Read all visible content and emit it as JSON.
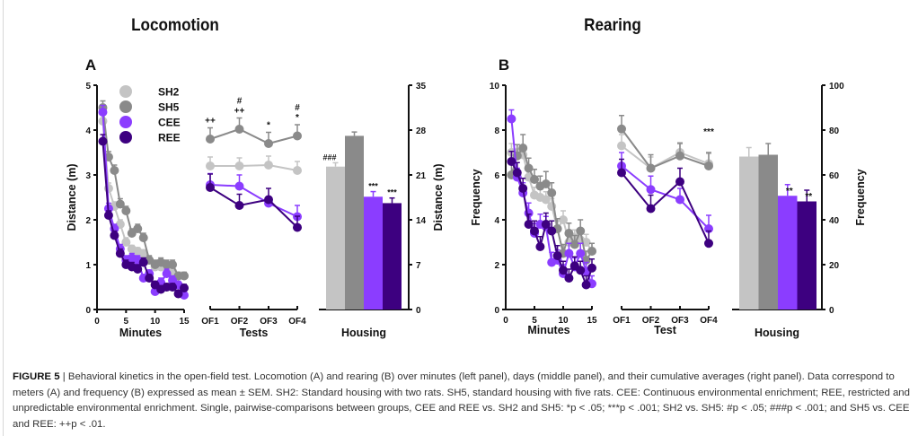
{
  "figure": {
    "titles": [
      "Locomotion",
      "Rearing"
    ],
    "panel_labels": [
      "A",
      "B"
    ],
    "legend": [
      {
        "name": "SH2",
        "color": "#c4c4c4"
      },
      {
        "name": "SH5",
        "color": "#8a8a8a"
      },
      {
        "name": "CEE",
        "color": "#8b3dff"
      },
      {
        "name": "REE",
        "color": "#3d0080"
      }
    ],
    "caption": {
      "label": "FIGURE 5",
      "separator": " | ",
      "text": "Behavioral kinetics in the open-field test. Locomotion (A) and rearing (B) over minutes (left panel), days (middle panel), and their cumulative averages (right panel). Data correspond to meters (A) and frequency (B) expressed as mean ± SEM. SH2: Standard housing with two rats. SH5, standard housing with five rats. CEE: Continuous environmental enrichment; REE, restricted and unpredictable environmental enrichment. Single, pairwise-comparisons between groups, CEE and REE vs. SH2 and SH5: *p < .05; ***p < .001; SH2 vs. SH5: #p < .05; ###p < .001; and SH5 vs. CEE and REE: ++p < .01."
    }
  },
  "chart_data": [
    {
      "id": "A-minutes",
      "type": "line",
      "title": "Locomotion",
      "panel": "A",
      "xlabel": "Minutes",
      "ylabel": "Distance (m)",
      "xlim": [
        0,
        15
      ],
      "ylim": [
        0,
        5
      ],
      "xticks": [
        0,
        5,
        10,
        15
      ],
      "yticks": [
        0,
        1,
        2,
        3,
        4,
        5
      ],
      "legend_position": "top-left",
      "x": [
        1,
        2,
        3,
        4,
        5,
        6,
        7,
        8,
        9,
        10,
        11,
        12,
        13,
        14,
        15
      ],
      "series": [
        {
          "name": "SH2",
          "color": "#c4c4c4",
          "values": [
            4.2,
            2.7,
            2.3,
            1.9,
            1.5,
            1.35,
            1.3,
            1.25,
            1.1,
            0.95,
            0.95,
            0.95,
            0.85,
            0.75,
            0.75
          ],
          "sem": [
            0.15,
            0.12,
            0.1,
            0.1,
            0.1,
            0.08,
            0.08,
            0.08,
            0.08,
            0.08,
            0.08,
            0.08,
            0.08,
            0.08,
            0.08
          ]
        },
        {
          "name": "SH5",
          "color": "#8a8a8a",
          "values": [
            4.5,
            3.4,
            3.1,
            2.35,
            2.2,
            1.7,
            1.8,
            1.6,
            1.1,
            1.0,
            1.05,
            1.0,
            1.0,
            0.75,
            0.75
          ],
          "sem": [
            0.15,
            0.12,
            0.12,
            0.12,
            0.1,
            0.1,
            0.1,
            0.1,
            0.1,
            0.1,
            0.1,
            0.1,
            0.1,
            0.08,
            0.08
          ]
        },
        {
          "name": "CEE",
          "color": "#8b3dff",
          "values": [
            4.4,
            2.25,
            1.8,
            1.35,
            1.1,
            1.15,
            1.1,
            0.7,
            0.8,
            0.4,
            0.6,
            0.8,
            0.65,
            0.55,
            0.32
          ],
          "sem": [
            0.15,
            0.12,
            0.1,
            0.1,
            0.1,
            0.1,
            0.1,
            0.08,
            0.08,
            0.08,
            0.1,
            0.1,
            0.1,
            0.08,
            0.08
          ]
        },
        {
          "name": "REE",
          "color": "#3d0080",
          "values": [
            3.75,
            2.1,
            1.65,
            1.25,
            1.0,
            0.95,
            0.9,
            1.05,
            0.7,
            0.55,
            0.45,
            0.5,
            0.5,
            0.35,
            0.48
          ],
          "sem": [
            0.15,
            0.1,
            0.1,
            0.1,
            0.1,
            0.1,
            0.1,
            0.1,
            0.08,
            0.08,
            0.08,
            0.08,
            0.08,
            0.08,
            0.08
          ]
        }
      ]
    },
    {
      "id": "A-tests",
      "type": "line",
      "panel": "A",
      "xlabel": "Tests",
      "ylim": [
        0,
        5
      ],
      "categories": [
        "OF1",
        "OF2",
        "OF3",
        "OF4"
      ],
      "series": [
        {
          "name": "SH2",
          "color": "#c4c4c4",
          "values": [
            3.2,
            3.2,
            3.22,
            3.1
          ],
          "sem": [
            0.2,
            0.18,
            0.2,
            0.2
          ]
        },
        {
          "name": "SH5",
          "color": "#8a8a8a",
          "values": [
            3.8,
            4.02,
            3.7,
            3.87
          ],
          "sem": [
            0.25,
            0.25,
            0.25,
            0.25
          ]
        },
        {
          "name": "CEE",
          "color": "#8b3dff",
          "values": [
            2.78,
            2.75,
            2.37,
            2.07
          ],
          "sem": [
            0.25,
            0.25,
            0.15,
            0.25
          ]
        },
        {
          "name": "REE",
          "color": "#3d0080",
          "values": [
            2.72,
            2.32,
            2.45,
            1.83
          ],
          "sem": [
            0.3,
            0.25,
            0.25,
            0.25
          ]
        }
      ],
      "annotations": [
        {
          "category": "OF1",
          "text": "++"
        },
        {
          "category": "OF2",
          "text": "++"
        },
        {
          "category": "OF2",
          "text": "#"
        },
        {
          "category": "OF3",
          "text": "*"
        },
        {
          "category": "OF4",
          "text": "*"
        },
        {
          "category": "OF4",
          "text": "#"
        }
      ]
    },
    {
      "id": "A-housing",
      "type": "bar",
      "panel": "A",
      "xlabel": "Housing",
      "ylabel": "Distance (m)",
      "ylabel_side": "right",
      "ylim": [
        0,
        35
      ],
      "yticks": [
        0,
        7,
        14,
        21,
        28,
        35
      ],
      "categories": [
        "SH2",
        "SH5",
        "CEE",
        "REE"
      ],
      "colors": [
        "#c4c4c4",
        "#8a8a8a",
        "#8b3dff",
        "#3d0080"
      ],
      "values": [
        22.3,
        27.1,
        17.6,
        16.6
      ],
      "sem": [
        0.6,
        0.6,
        0.8,
        0.8
      ],
      "annotations": [
        "###",
        "",
        "***",
        "***"
      ]
    },
    {
      "id": "B-minutes",
      "type": "line",
      "title": "Rearing",
      "panel": "B",
      "xlabel": "Minutes",
      "ylabel": "Frequency",
      "xlim": [
        0,
        15
      ],
      "ylim": [
        0,
        10
      ],
      "xticks": [
        0,
        5,
        10,
        15
      ],
      "yticks": [
        0,
        2,
        4,
        6,
        8,
        10
      ],
      "x": [
        1,
        2,
        3,
        4,
        5,
        6,
        7,
        8,
        9,
        10,
        11,
        12,
        13,
        14,
        15
      ],
      "series": [
        {
          "name": "SH2",
          "color": "#c4c4c4",
          "values": [
            7.0,
            7.0,
            6.9,
            5.9,
            5.1,
            5.0,
            4.9,
            4.6,
            3.6,
            4.0,
            3.0,
            3.2,
            3.1,
            3.0,
            2.6
          ],
          "sem": [
            0.4,
            0.35,
            0.35,
            0.35,
            0.35,
            0.35,
            0.35,
            0.35,
            0.35,
            0.4,
            0.35,
            0.35,
            0.35,
            0.35,
            0.35
          ]
        },
        {
          "name": "SH5",
          "color": "#8a8a8a",
          "values": [
            6.0,
            6.85,
            7.2,
            6.3,
            5.8,
            5.5,
            5.6,
            5.2,
            3.6,
            2.5,
            3.4,
            2.9,
            3.5,
            2.2,
            2.6
          ],
          "sem": [
            0.45,
            0.5,
            0.6,
            0.45,
            0.45,
            0.45,
            0.55,
            0.45,
            0.45,
            0.4,
            0.45,
            0.4,
            0.5,
            0.4,
            0.35
          ]
        },
        {
          "name": "CEE",
          "color": "#8b3dff",
          "values": [
            8.5,
            5.9,
            5.2,
            4.3,
            3.4,
            3.8,
            3.7,
            2.1,
            2.2,
            1.6,
            2.5,
            1.9,
            2.5,
            1.7,
            1.15
          ],
          "sem": [
            0.4,
            0.4,
            0.45,
            0.45,
            0.45,
            0.45,
            0.45,
            0.45,
            0.45,
            0.4,
            0.45,
            0.4,
            0.45,
            0.4,
            0.35
          ]
        },
        {
          "name": "REE",
          "color": "#3d0080",
          "values": [
            6.6,
            6.1,
            5.4,
            3.8,
            3.5,
            2.8,
            3.8,
            3.5,
            2.4,
            1.75,
            1.4,
            1.95,
            1.75,
            1.1,
            1.85
          ],
          "sem": [
            0.45,
            0.45,
            0.45,
            0.45,
            0.45,
            0.45,
            0.5,
            0.45,
            0.45,
            0.4,
            0.4,
            0.4,
            0.4,
            0.4,
            0.4
          ]
        }
      ]
    },
    {
      "id": "B-tests",
      "type": "line",
      "panel": "B",
      "xlabel": "Test",
      "ylim": [
        0,
        10
      ],
      "categories": [
        "OF1",
        "OF2",
        "OF3",
        "OF4"
      ],
      "series": [
        {
          "name": "SH2",
          "color": "#c4c4c4",
          "values": [
            7.3,
            6.3,
            7.0,
            6.5
          ],
          "sem": [
            0.5,
            0.5,
            0.45,
            0.45
          ]
        },
        {
          "name": "SH5",
          "color": "#8a8a8a",
          "values": [
            8.05,
            6.3,
            6.85,
            6.4
          ],
          "sem": [
            0.6,
            0.6,
            0.55,
            0.6
          ]
        },
        {
          "name": "CEE",
          "color": "#8b3dff",
          "values": [
            6.4,
            5.35,
            4.9,
            3.6
          ],
          "sem": [
            0.6,
            0.6,
            0.5,
            0.6
          ]
        },
        {
          "name": "REE",
          "color": "#3d0080",
          "values": [
            6.1,
            4.5,
            5.7,
            2.95
          ],
          "sem": [
            0.6,
            0.6,
            0.6,
            0.55
          ]
        }
      ],
      "annotations": [
        {
          "category": "OF4",
          "text": "***"
        }
      ]
    },
    {
      "id": "B-housing",
      "type": "bar",
      "panel": "B",
      "xlabel": "Housing",
      "ylabel": "Frequency",
      "ylabel_side": "right",
      "ylim": [
        0,
        100
      ],
      "yticks": [
        0,
        20,
        40,
        60,
        80,
        100
      ],
      "categories": [
        "SH2",
        "SH5",
        "CEE",
        "REE"
      ],
      "colors": [
        "#c4c4c4",
        "#8a8a8a",
        "#8b3dff",
        "#3d0080"
      ],
      "values": [
        68.2,
        69.0,
        50.7,
        48.2
      ],
      "sem": [
        4.0,
        5.0,
        5.0,
        5.0
      ],
      "annotations": [
        "",
        "",
        "**",
        "**"
      ]
    }
  ]
}
